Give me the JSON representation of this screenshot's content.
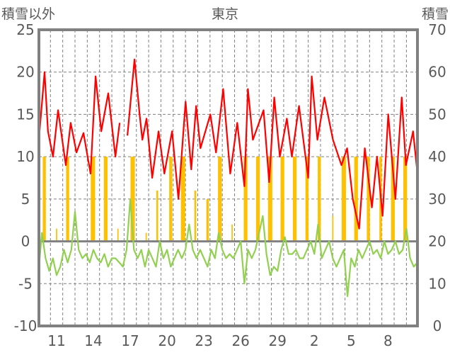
{
  "chart_data": {
    "type": "line",
    "title": "東京",
    "ylabel_left": "積雪以外",
    "ylabel_right": "積雪",
    "ylim_left": [
      -10,
      25
    ],
    "ylim_right": [
      0,
      70
    ],
    "yticks_left": [
      "25",
      "20",
      "15",
      "10",
      "5",
      "0",
      "-5",
      "-10"
    ],
    "yticks_right": [
      "70",
      "60",
      "50",
      "40",
      "30",
      "20",
      "10",
      "0"
    ],
    "xlim_days": [
      9.56,
      40.4
    ],
    "xticks": [
      {
        "d": 11,
        "label": "11"
      },
      {
        "d": 14,
        "label": "14"
      },
      {
        "d": 17,
        "label": "17"
      },
      {
        "d": 20,
        "label": "20"
      },
      {
        "d": 23,
        "label": "23"
      },
      {
        "d": 26,
        "label": "26"
      },
      {
        "d": 29,
        "label": "29"
      },
      {
        "d": 32,
        "label": "2"
      },
      {
        "d": 35,
        "label": "5"
      },
      {
        "d": 38,
        "label": "8"
      }
    ],
    "grid": true,
    "colors": {
      "red": "#ff0000",
      "green": "#92d050",
      "orange": "#ffc000",
      "purple": "#7030a0",
      "blue": "#0070c0",
      "axis": "#808080"
    },
    "series": [
      {
        "name": "red",
        "axis": "left",
        "x": [
          9.56,
          10.02,
          10.3,
          10.71,
          11.12,
          11.75,
          12.15,
          12.62,
          13.19,
          13.77,
          14.18,
          14.64,
          15.21,
          15.79,
          16.14,
          null,
          16.77,
          17.35,
          17.76,
          17.99,
          18.33,
          18.79,
          19.31,
          19.78,
          20.41,
          20.93,
          21.51,
          21.97,
          22.37,
          22.72,
          23.53,
          23.99,
          24.57,
          25.15,
          25.72,
          26.3,
          26.59,
          26.99,
          27.86,
          28.32,
          28.73,
          29.19,
          29.76,
          30.17,
          30.75,
          31.5,
          31.79,
          32.25,
          32.82,
          33.52,
          34.21,
          34.67,
          35.13,
          35.65,
          36.11,
          36.69,
          37.1,
          37.56,
          38.02,
          38.6,
          39.12,
          39.46,
          40.04,
          40.4
        ],
        "y": [
          12.1,
          20,
          13,
          10,
          15.5,
          9,
          14,
          10.5,
          12.8,
          8,
          19.5,
          13,
          17.5,
          10,
          14,
          null,
          12.5,
          21.5,
          15,
          12,
          14.5,
          7.5,
          13,
          8,
          13,
          5,
          16.5,
          8.5,
          16,
          11,
          15,
          10.5,
          18,
          8,
          14,
          6.5,
          18,
          12,
          15.5,
          7,
          17,
          10,
          14.5,
          10,
          16,
          7.5,
          19.5,
          12,
          17,
          12,
          9,
          11,
          5,
          1.5,
          11,
          4,
          10,
          3,
          15,
          5,
          17,
          9,
          13,
          8
        ]
      },
      {
        "name": "green",
        "axis": "left",
        "x": [
          9.56,
          9.8,
          10.1,
          10.4,
          10.7,
          11.0,
          11.3,
          11.6,
          11.9,
          12.2,
          12.5,
          12.8,
          13.1,
          13.4,
          13.7,
          14.0,
          14.3,
          14.6,
          14.9,
          15.2,
          15.5,
          15.8,
          16.1,
          16.4,
          16.7,
          17.0,
          17.3,
          17.6,
          17.9,
          18.2,
          18.5,
          18.8,
          19.1,
          19.4,
          19.7,
          20.0,
          20.3,
          20.6,
          20.9,
          21.2,
          21.5,
          21.8,
          22.1,
          22.4,
          22.7,
          23.0,
          23.3,
          23.6,
          23.9,
          24.2,
          24.5,
          24.8,
          25.1,
          25.4,
          25.7,
          26.0,
          26.3,
          26.6,
          26.9,
          27.2,
          27.5,
          27.8,
          28.1,
          28.4,
          28.7,
          29.0,
          29.3,
          29.6,
          29.9,
          30.2,
          30.5,
          30.8,
          31.1,
          31.4,
          31.7,
          32.0,
          32.3,
          32.6,
          32.9,
          33.2,
          33.5,
          33.8,
          34.1,
          34.4,
          34.7,
          35.0,
          35.3,
          35.6,
          35.9,
          36.2,
          36.5,
          36.8,
          37.1,
          37.4,
          37.7,
          38.0,
          38.3,
          38.6,
          38.9,
          39.2,
          39.5,
          39.8,
          40.1,
          40.4
        ],
        "y": [
          -3,
          1,
          -2,
          -3.5,
          -2,
          -4,
          -3,
          -1,
          -2.5,
          -1,
          3.5,
          -1,
          -2,
          -1.5,
          -2.5,
          -1,
          -2,
          -2.5,
          -1.5,
          -3,
          -2,
          -2,
          -2.5,
          -3,
          -1,
          5,
          -1,
          -2,
          -1,
          -3,
          -1,
          -2,
          -3,
          0,
          -2,
          -1,
          -3,
          -2,
          -1,
          -2,
          -1,
          2,
          -1,
          -2,
          -1,
          -2,
          -3,
          -1,
          -2,
          1,
          -1,
          -2,
          -1.5,
          -2,
          -1,
          0,
          -5,
          -1,
          -2,
          -1,
          1,
          3,
          -1.5,
          -4,
          -3,
          -3.5,
          -1,
          0.5,
          -1.5,
          -1.5,
          -1,
          -2,
          -2,
          -1,
          0,
          -1.5,
          2,
          -2,
          -1,
          0,
          -2,
          -3,
          -2,
          -1,
          -6.5,
          -2,
          -3,
          -1,
          -2,
          -1,
          0,
          -1.5,
          -1,
          -2,
          0,
          -1.5,
          -1,
          0,
          -1.5,
          -1,
          1.5,
          -2,
          -3,
          -2.5
        ]
      },
      {
        "name": "orange",
        "axis": "left",
        "type": "bar",
        "d": [
          10.0,
          11.0,
          11.9,
          13.96,
          15.0,
          16.0,
          17.2,
          18.3,
          19.2,
          20.3,
          21.3,
          22.3,
          23.3,
          24.3,
          25.3,
          26.4,
          27.4,
          28.4,
          29.4,
          30.4,
          31.4,
          32.4,
          33.5,
          34.4,
          35.4,
          36.4,
          37.4,
          38.4,
          39.4
        ],
        "v": [
          10,
          1.5,
          10,
          10,
          10,
          1.5,
          10,
          1,
          6,
          10,
          10,
          6,
          5,
          10,
          2,
          10,
          10,
          10,
          10,
          10,
          10,
          10,
          3,
          10,
          10,
          10,
          10,
          10,
          10
        ],
        "w": [
          0.25,
          0.1,
          0.25,
          0.35,
          0.3,
          0.1,
          0.35,
          0.1,
          0.15,
          0.25,
          0.35,
          0.15,
          0.2,
          0.3,
          0.1,
          0.3,
          0.3,
          0.35,
          0.3,
          0.3,
          0.25,
          0.25,
          0.1,
          0.35,
          0.3,
          0.25,
          0.2,
          0.3,
          0.3
        ]
      },
      {
        "name": "purple",
        "axis": "right",
        "x": [
          31.6,
          40.4
        ],
        "y": [
          0,
          0
        ]
      }
    ]
  }
}
